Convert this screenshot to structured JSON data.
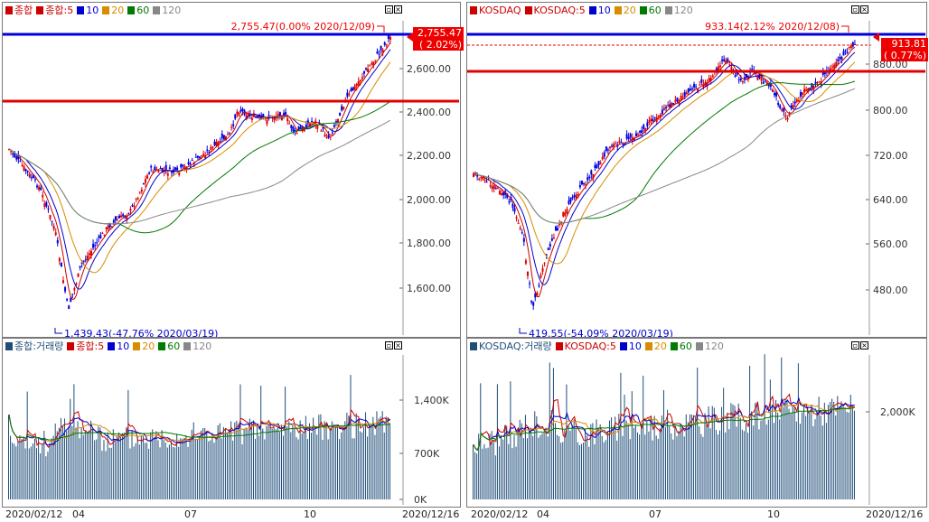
{
  "left": {
    "price_legend": [
      {
        "text": "종합",
        "color": "#cc0000"
      },
      {
        "text": "종합:5",
        "color": "#cc0000"
      },
      {
        "text": "10",
        "color": "#0000cc"
      },
      {
        "text": "20",
        "color": "#d98c00"
      },
      {
        "text": "60",
        "color": "#007a00"
      },
      {
        "text": "120",
        "color": "#888888"
      }
    ],
    "volume_legend": [
      {
        "text": "종합:거래량",
        "color": "#1f4e79"
      },
      {
        "text": "종합:5",
        "color": "#cc0000"
      },
      {
        "text": "10",
        "color": "#0000cc"
      },
      {
        "text": "20",
        "color": "#d98c00"
      },
      {
        "text": "60",
        "color": "#007a00"
      },
      {
        "text": "120",
        "color": "#888888"
      }
    ],
    "high_annotation": "2,755.47(0.00% 2020/12/09)",
    "low_annotation": "1,439.43(-47.76% 2020/03/19)",
    "price_tag_value": "2,755.47",
    "price_tag_pct": "( 2.02%)",
    "price_axis": [
      "2,600.00",
      "2,400.00",
      "2,200.00",
      "2,000.00",
      "1,800.00",
      "1,600.00"
    ],
    "volume_axis": [
      "1,400K",
      "700K",
      "0K"
    ],
    "date_start": "2020/02/12",
    "date_end": "2020/12/16",
    "date_ticks": [
      "04",
      "07",
      "10"
    ]
  },
  "right": {
    "price_legend": [
      {
        "text": "KOSDAQ",
        "color": "#cc0000"
      },
      {
        "text": "KOSDAQ:5",
        "color": "#cc0000"
      },
      {
        "text": "10",
        "color": "#0000cc"
      },
      {
        "text": "20",
        "color": "#d98c00"
      },
      {
        "text": "60",
        "color": "#007a00"
      },
      {
        "text": "120",
        "color": "#888888"
      }
    ],
    "volume_legend": [
      {
        "text": "KOSDAQ:거래량",
        "color": "#1f4e79"
      },
      {
        "text": "KOSDAQ:5",
        "color": "#cc0000"
      },
      {
        "text": "10",
        "color": "#0000cc"
      },
      {
        "text": "20",
        "color": "#d98c00"
      },
      {
        "text": "60",
        "color": "#007a00"
      },
      {
        "text": "120",
        "color": "#888888"
      }
    ],
    "high_annotation": "933.14(2.12% 2020/12/08)",
    "low_annotation": "419.55(-54.09% 2020/03/19)",
    "price_tag_value": "913.81",
    "price_tag_pct": "( 0.77%)",
    "price_axis": [
      "880.00",
      "800.00",
      "720.00",
      "640.00",
      "560.00",
      "480.00"
    ],
    "volume_axis": [
      "2,000K"
    ],
    "date_start": "2020/02/12",
    "date_end": "2020/12/16",
    "date_ticks": [
      "04",
      "07",
      "10"
    ]
  },
  "colors": {
    "up": "#e00000",
    "down": "#0000e0",
    "hline_blue": "#0000dd",
    "hline_red": "#e00000",
    "volume": "#1f4e79"
  }
}
